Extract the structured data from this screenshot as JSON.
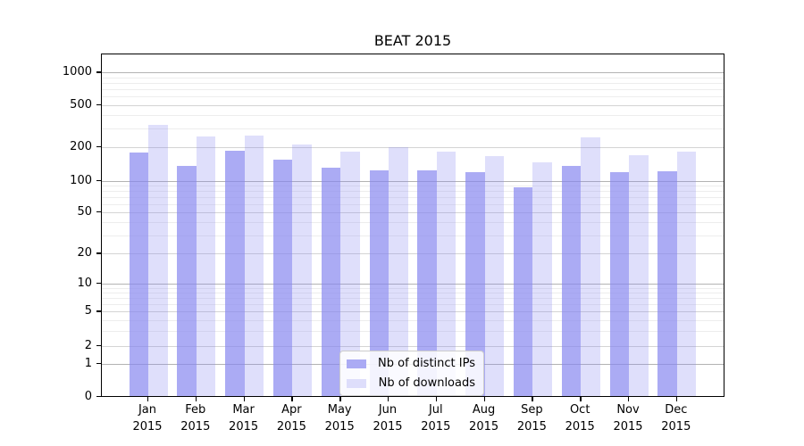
{
  "title": {
    "text": "BEAT 2015"
  },
  "chart_data": {
    "type": "bar",
    "title": "BEAT 2015",
    "categories": [
      "Jan 2015",
      "Feb 2015",
      "Mar 2015",
      "Apr 2015",
      "May 2015",
      "Jun 2015",
      "Jul 2015",
      "Aug 2015",
      "Sep 2015",
      "Oct 2015",
      "Nov 2015",
      "Dec 2015"
    ],
    "x_tick_line1": [
      "Jan",
      "Feb",
      "Mar",
      "Apr",
      "May",
      "Jun",
      "Jul",
      "Aug",
      "Sep",
      "Oct",
      "Nov",
      "Dec"
    ],
    "x_tick_line2": "2015",
    "series": [
      {
        "name": "Nb of distinct IPs",
        "values": [
          178,
          134,
          182,
          154,
          130,
          124,
          123,
          118,
          87,
          136,
          118,
          122
        ],
        "color_base": "#8787f0",
        "alpha": 0.7,
        "effective_color": "#ababf4"
      },
      {
        "name": "Nb of downloads",
        "values": [
          320,
          248,
          253,
          208,
          179,
          198,
          179,
          165,
          145,
          245,
          168,
          181
        ],
        "color_base": "#8787f0",
        "alpha": 0.27,
        "effective_color": "#dedefb"
      }
    ],
    "yscale": "symlog",
    "yticks": [
      0,
      1,
      2,
      5,
      10,
      20,
      50,
      100,
      200,
      500,
      1000
    ],
    "minor_grid_subs": [
      3,
      4,
      6,
      7,
      8,
      9
    ],
    "grid": true,
    "legend_position": "lower center",
    "xlabel": "",
    "ylabel": ""
  },
  "colors": {
    "grid_major": "#d4d4d4",
    "grid_decade": "#b3b3b3",
    "grid_minor": "#ededed",
    "spine": "#000000",
    "text": "#000000",
    "legend_border": "#cccccc"
  }
}
